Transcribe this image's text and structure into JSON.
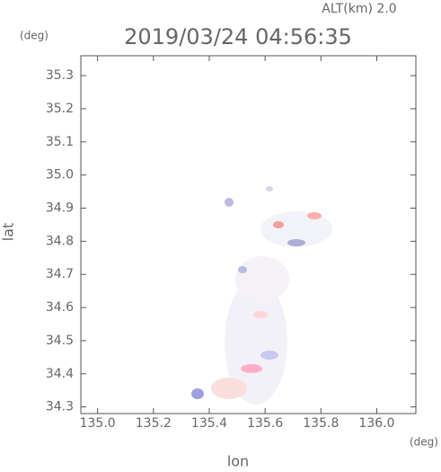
{
  "chart_data": {
    "type": "map",
    "title": "2019/03/24 04:56:35",
    "subtitle": "ALT(km) 2.0",
    "y_unit": "(deg)",
    "x_unit": "(deg)",
    "x_label": "lon",
    "y_label": "lat",
    "xlim": [
      134.94,
      136.14
    ],
    "ylim": [
      34.28,
      35.36
    ],
    "xticks": [
      {
        "value": 135,
        "label": "135.0"
      },
      135.2,
      135.4,
      135.6,
      135.8,
      {
        "value": 136,
        "label": "136.0"
      }
    ],
    "yticks": [
      34.3,
      34.4,
      34.5,
      34.6,
      34.7,
      34.8,
      34.9,
      {
        "value": 35,
        "label": "35.0"
      },
      35.1,
      35.2,
      35.3
    ]
  }
}
